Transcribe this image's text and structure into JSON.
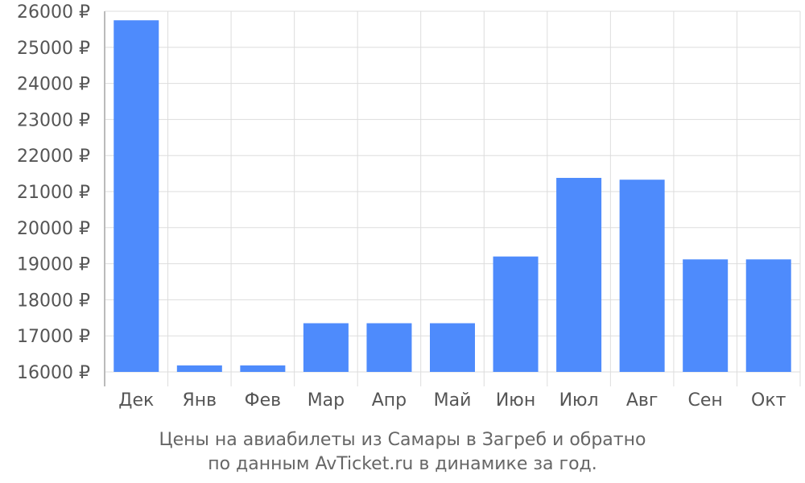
{
  "chart_data": {
    "type": "bar",
    "categories": [
      "Дек",
      "Янв",
      "Фев",
      "Мар",
      "Апр",
      "Май",
      "Июн",
      "Июл",
      "Авг",
      "Сен",
      "Окт"
    ],
    "values": [
      25750,
      16180,
      16180,
      17350,
      17350,
      17350,
      19200,
      21380,
      21330,
      19120,
      19120
    ],
    "ylim": [
      16000,
      26000
    ],
    "yticks": [
      16000,
      17000,
      18000,
      19000,
      20000,
      21000,
      22000,
      23000,
      24000,
      25000,
      26000
    ],
    "ytick_suffix": " ₽",
    "grid": true,
    "bar_color": "#4e8bfc",
    "grid_color": "#dddddd",
    "axis_color": "#bbbbbb",
    "title": "",
    "xlabel": "",
    "ylabel": ""
  },
  "caption": {
    "line1": "Цены на авиабилеты из Самары в Загреб и обратно",
    "line2": "по данным AvTicket.ru в динамике за год."
  }
}
